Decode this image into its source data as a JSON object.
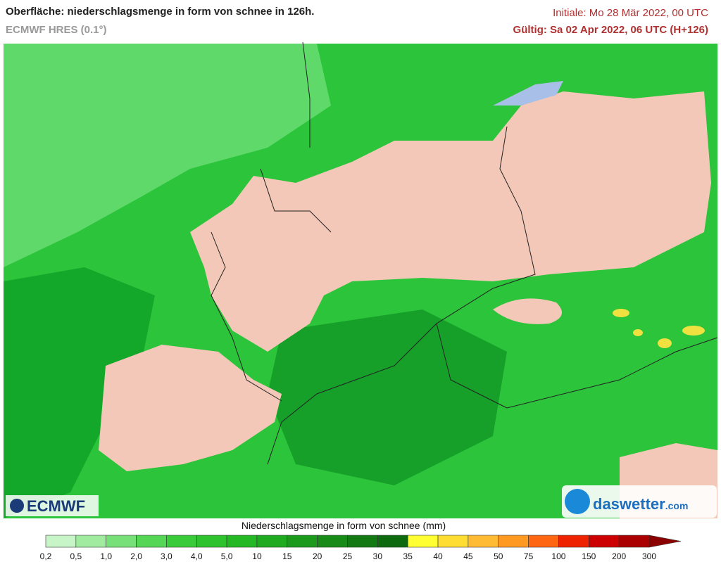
{
  "header": {
    "title": "Oberfläche: niederschlagsmenge in form von schnee in 126h.",
    "subtitle": "ECMWF HRES (0.1°)",
    "initial": "Initiale: Mo 28 Mär 2022, 00 UTC",
    "valid": "Gültig: Sa 02 Apr 2022, 06 UTC (H+126)"
  },
  "logos": {
    "left": "ECMWF",
    "right": "daswetter",
    "right_suffix": ".com"
  },
  "legend": {
    "title": "Niederschlagsmenge in form von schnee (mm)",
    "labels": [
      "0,2",
      "0,5",
      "1,0",
      "2,0",
      "3,0",
      "4,0",
      "5,0",
      "10",
      "15",
      "20",
      "25",
      "30",
      "35",
      "40",
      "45",
      "50",
      "75",
      "100",
      "150",
      "200",
      "300"
    ],
    "colors": [
      "#c8f5c8",
      "#a0eba0",
      "#78e078",
      "#55d655",
      "#3acb3a",
      "#2ec22e",
      "#24b824",
      "#20aa20",
      "#1c9a1c",
      "#178a17",
      "#137a13",
      "#0e6a0e",
      "#ffff33",
      "#ffdd33",
      "#ffbb33",
      "#ff9922",
      "#ff6611",
      "#ee2200",
      "#cc0000",
      "#aa0000"
    ],
    "arrow_color": "#8b0000"
  }
}
